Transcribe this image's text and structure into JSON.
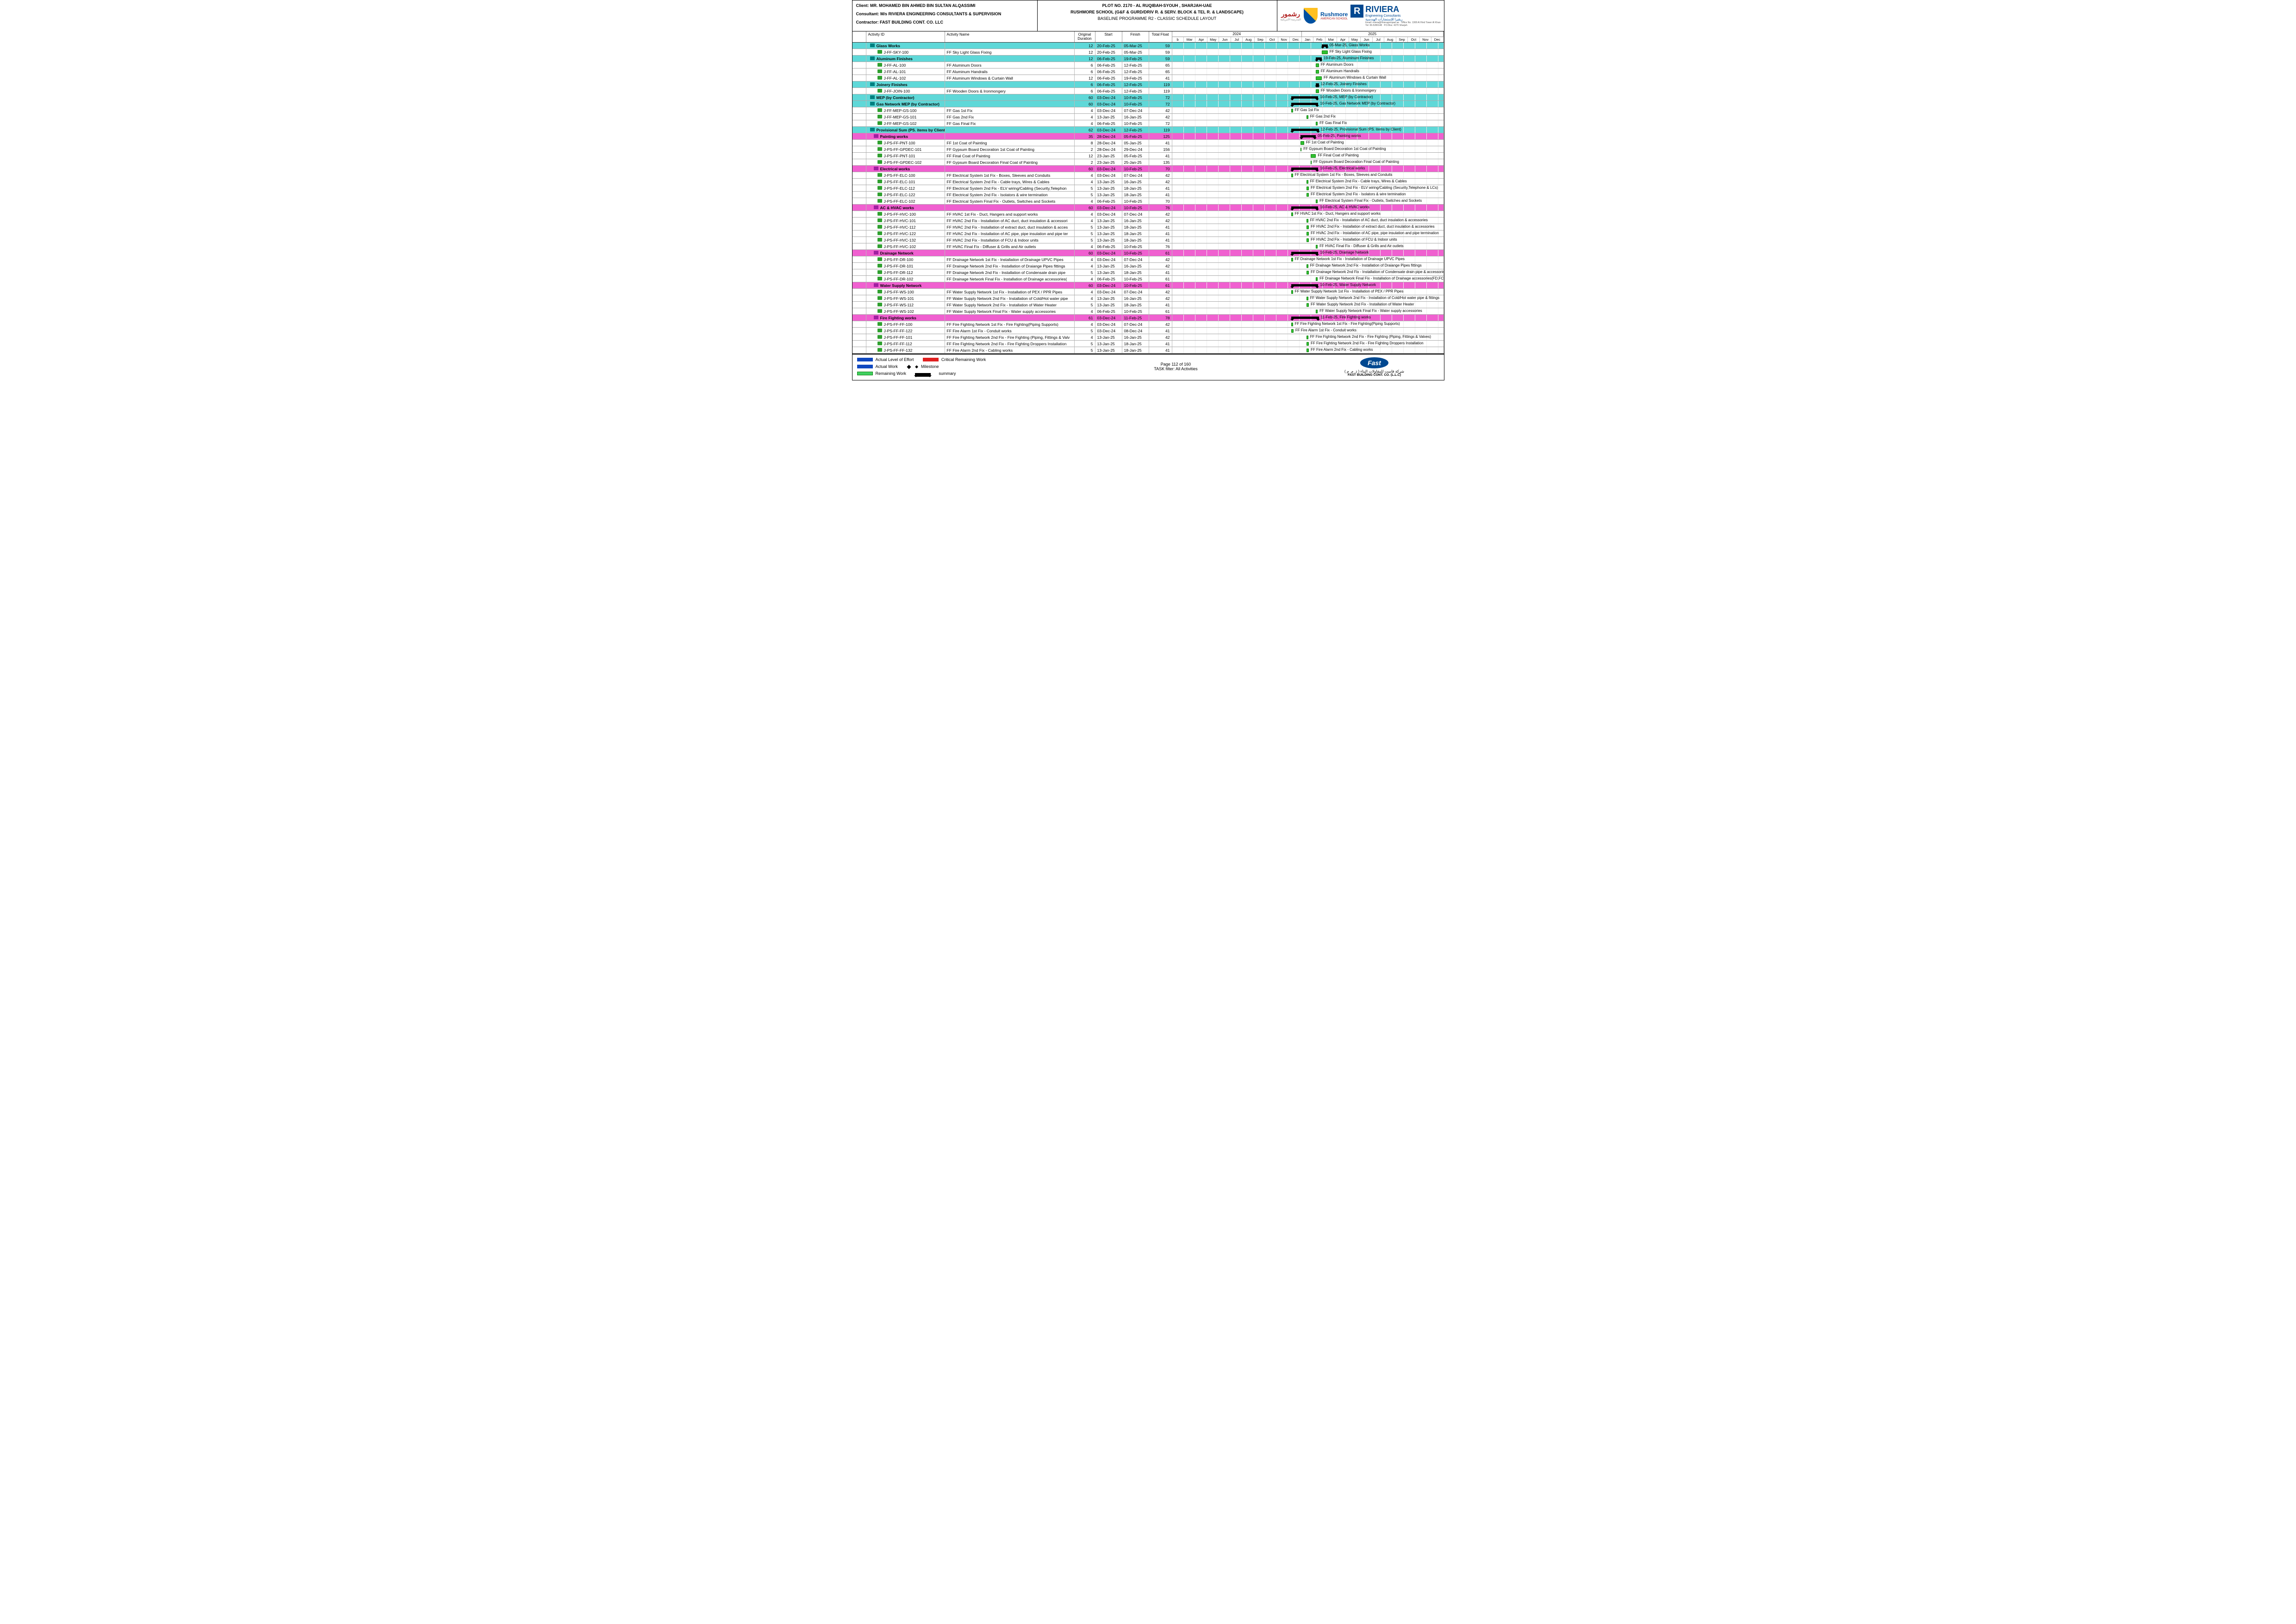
{
  "header": {
    "client_label": "Client:",
    "client": "MR. MOHAMED BIN AHMED BIN SULTAN ALQASSIMI",
    "consultant_label": "Consultant:",
    "consultant": "M/s RIVIERA ENGINEERING CONSULTANTS & SUPERVISION",
    "contractor_label": "Contractor:",
    "contractor": "FAST BUILDING CONT. CO. LLC",
    "plot": "PLOT NO. 2170 - AL RUQIBAH-SYOUH , SHARJAH-UAE",
    "project": "RUSHMORE SCHOOL (G&F & GURD/DRIV R. & SERV. BLOCK & TEL R. & LANDSCAPE)",
    "baseline": "BASELINE PROGRAMME R2 - CLASSIC SCHEDULE LAYOUT",
    "rushmore_ar": "رشمور",
    "rushmore_en": "Rushmore",
    "rushmore_sub": "AMERICAN SCHOOL",
    "riviera": "RIVIERA",
    "riviera_sub1": "Engineering Consultants",
    "riviera_sub2": "ريڤيرا للإستشارات الهندسية",
    "riviera_email": "Email: riviera@rivieragroupae.ae",
    "riviera_tel": "Tel: 06-5280148",
    "riviera_addr1": "Office No. 1308 Al Hind Tower Al Khan",
    "riviera_addr2": "P.O.Box: 4270 Sharjah"
  },
  "columns": {
    "id": "Activity ID",
    "name": "Activity Name",
    "od": "Original Duration",
    "start": "Start",
    "finish": "Finish",
    "float": "Total Float"
  },
  "years": [
    "2024",
    "2025"
  ],
  "months": [
    "b",
    "Mar",
    "Apr",
    "May",
    "Jun",
    "Jul",
    "Aug",
    "Sep",
    "Oct",
    "Nov",
    "Dec",
    "Jan",
    "Feb",
    "Mar",
    "Apr",
    "May",
    "Jun",
    "Jul",
    "Aug",
    "Sep",
    "Oct",
    "Nov",
    "Dec"
  ],
  "stripes": [
    "#2040c0",
    "#c84020",
    "#e8c030",
    "#20a060",
    "#8040c0"
  ],
  "rows": [
    {
      "t": "sc",
      "id": "Glass Works",
      "name": "",
      "od": "12",
      "s": "20-Feb-25",
      "f": "05-Mar-25",
      "fl": "59",
      "bs": 12.7,
      "bw": 0.5,
      "lbl": "05-Mar-25, Glass Works"
    },
    {
      "t": "a",
      "id": "J-FF-SKY-100",
      "name": "FF Sky Light Glass Fixing",
      "od": "12",
      "s": "20-Feb-25",
      "f": "05-Mar-25",
      "fl": "59",
      "bs": 12.7,
      "bw": 0.5,
      "lbl": "FF Sky Light Glass Fixing"
    },
    {
      "t": "sc",
      "id": "Aluminum Finishes",
      "name": "",
      "od": "12",
      "s": "06-Feb-25",
      "f": "19-Feb-25",
      "fl": "59",
      "bs": 12.2,
      "bw": 0.5,
      "lbl": "19-Feb-25, Aluminum Finishes"
    },
    {
      "t": "a",
      "id": "J-FF-AL-100",
      "name": "FF Aluminum Doors",
      "od": "6",
      "s": "06-Feb-25",
      "f": "12-Feb-25",
      "fl": "65",
      "bs": 12.2,
      "bw": 0.25,
      "lbl": "FF Aluminum Doors"
    },
    {
      "t": "a",
      "id": "J-FF-AL-101",
      "name": "FF Aluminum Handrails",
      "od": "6",
      "s": "06-Feb-25",
      "f": "12-Feb-25",
      "fl": "65",
      "bs": 12.2,
      "bw": 0.25,
      "lbl": "FF Aluminum Handrails"
    },
    {
      "t": "a",
      "id": "J-FF-AL-102",
      "name": "FF Aluminum Windows & Curtain Wall",
      "od": "12",
      "s": "06-Feb-25",
      "f": "19-Feb-25",
      "fl": "41",
      "bs": 12.2,
      "bw": 0.5,
      "lbl": "FF Aluminum Windows & Curtain Wall"
    },
    {
      "t": "sc",
      "id": "Joinery Finishes",
      "name": "",
      "od": "6",
      "s": "06-Feb-25",
      "f": "12-Feb-25",
      "fl": "119",
      "bs": 12.2,
      "bw": 0.25,
      "lbl": "12-Feb-25, Joinery Finishes"
    },
    {
      "t": "a",
      "id": "J-FF-JOIN-100",
      "name": "FF Wooden Doors & Ironmongery",
      "od": "6",
      "s": "06-Feb-25",
      "f": "12-Feb-25",
      "fl": "119",
      "bs": 12.2,
      "bw": 0.25,
      "lbl": "FF Wooden Doors & Ironmongery"
    },
    {
      "t": "sc",
      "id": "MEP (by Contractor)",
      "name": "",
      "od": "60",
      "s": "03-Dec-24",
      "f": "10-Feb-25",
      "fl": "72",
      "bs": 10.1,
      "bw": 2.3,
      "lbl": "10-Feb-25, MEP (by Contractor)"
    },
    {
      "t": "sc",
      "id": "Gas Network MEP (by Contractor)",
      "name": "",
      "od": "60",
      "s": "03-Dec-24",
      "f": "10-Feb-25",
      "fl": "72",
      "bs": 10.1,
      "bw": 2.3,
      "lbl": "10-Feb-25, Gas Network MEP (by Contractor)"
    },
    {
      "t": "a",
      "id": "J-FF-MEP-GS-100",
      "name": "FF Gas 1st Fix",
      "od": "4",
      "s": "03-Dec-24",
      "f": "07-Dec-24",
      "fl": "42",
      "bs": 10.1,
      "bw": 0.15,
      "lbl": "FF Gas 1st Fix"
    },
    {
      "t": "a",
      "id": "J-FF-MEP-GS-101",
      "name": "FF Gas 2nd Fix",
      "od": "4",
      "s": "13-Jan-25",
      "f": "16-Jan-25",
      "fl": "42",
      "bs": 11.4,
      "bw": 0.15,
      "lbl": "FF Gas 2nd Fix"
    },
    {
      "t": "a",
      "id": "J-FF-MEP-GS-102",
      "name": "FF Gas Final Fix",
      "od": "4",
      "s": "06-Feb-25",
      "f": "10-Feb-25",
      "fl": "72",
      "bs": 12.2,
      "bw": 0.15,
      "lbl": "FF Gas Final Fix"
    },
    {
      "t": "sc",
      "id": "Provisional Sum (PS. items by Client)",
      "name": "",
      "od": "62",
      "s": "03-Dec-24",
      "f": "12-Feb-25",
      "fl": "119",
      "bs": 10.1,
      "bw": 2.35,
      "lbl": "12-Feb-25, Provisional Sum (PS. items by Client)"
    },
    {
      "t": "sm",
      "id": "Painting works",
      "name": "",
      "od": "35",
      "s": "28-Dec-24",
      "f": "05-Feb-25",
      "fl": "125",
      "bs": 10.9,
      "bw": 1.3,
      "lbl": "05-Feb-25, Painting works"
    },
    {
      "t": "a",
      "id": "J-PS-FF-PNT-100",
      "name": "FF 1st Coat of Painting",
      "od": "8",
      "s": "28-Dec-24",
      "f": "05-Jan-25",
      "fl": "41",
      "bs": 10.9,
      "bw": 0.3,
      "lbl": "FF 1st Coat of Painting"
    },
    {
      "t": "a",
      "id": "J-PS-FF-GPDEC-101",
      "name": "FF Gypsum Board Decoration 1st Coat of Painting",
      "od": "2",
      "s": "28-Dec-24",
      "f": "29-Dec-24",
      "fl": "156",
      "bs": 10.9,
      "bw": 0.08,
      "lbl": "FF Gypsum Board Decoration 1st Coat of Painting"
    },
    {
      "t": "a",
      "id": "J-PS-FF-PNT-101",
      "name": "FF Final Coat of Painting",
      "od": "12",
      "s": "23-Jan-25",
      "f": "05-Feb-25",
      "fl": "41",
      "bs": 11.75,
      "bw": 0.45,
      "lbl": "FF Final Coat of Painting"
    },
    {
      "t": "a",
      "id": "J-PS-FF-GPDEC-102",
      "name": "FF Gypsum Board Decoration Final Coat of Painting",
      "od": "2",
      "s": "23-Jan-25",
      "f": "25-Jan-25",
      "fl": "135",
      "bs": 11.75,
      "bw": 0.08,
      "lbl": "FF Gypsum Board Decoration Final Coat of Painting"
    },
    {
      "t": "sm",
      "id": "Electrical works",
      "name": "",
      "od": "60",
      "s": "03-Dec-24",
      "f": "10-Feb-25",
      "fl": "70",
      "bs": 10.1,
      "bw": 2.3,
      "lbl": "10-Feb-25, Electrical works"
    },
    {
      "t": "a",
      "id": "J-PS-FF-ELC-100",
      "name": "FF Electrical System 1st Fix - Boxes, Sleeves and Conduits",
      "od": "4",
      "s": "03-Dec-24",
      "f": "07-Dec-24",
      "fl": "42",
      "bs": 10.1,
      "bw": 0.15,
      "lbl": "FF Electrical System 1st Fix - Boxes, Sleeves and Conduits"
    },
    {
      "t": "a",
      "id": "J-PS-FF-ELC-101",
      "name": "FF Electrical System 2nd Fix - Cable trays, Wires & Cables",
      "od": "4",
      "s": "13-Jan-25",
      "f": "16-Jan-25",
      "fl": "42",
      "bs": 11.4,
      "bw": 0.15,
      "lbl": "FF Electrical System 2nd Fix - Cable trays, Wires & Cables"
    },
    {
      "t": "a",
      "id": "J-PS-FF-ELC-112",
      "name": "FF Electrical System 2nd Fix - ELV wiring/Cabling (Security,Telephon",
      "od": "5",
      "s": "13-Jan-25",
      "f": "18-Jan-25",
      "fl": "41",
      "bs": 11.4,
      "bw": 0.2,
      "lbl": "FF Electrical System 2nd Fix - ELV wiring/Cabling (Security,Telephone & LCs)"
    },
    {
      "t": "a",
      "id": "J-PS-FF-ELC-122",
      "name": "FF Electrical System 2nd Fix - Isolators & wire termination",
      "od": "5",
      "s": "13-Jan-25",
      "f": "18-Jan-25",
      "fl": "41",
      "bs": 11.4,
      "bw": 0.2,
      "lbl": "FF Electrical System 2nd Fix - Isolators & wire termination"
    },
    {
      "t": "a",
      "id": "J-PS-FF-ELC-102",
      "name": "FF Electrical System Final Fix - Outlets, Switches and Sockets",
      "od": "4",
      "s": "06-Feb-25",
      "f": "10-Feb-25",
      "fl": "70",
      "bs": 12.2,
      "bw": 0.15,
      "lbl": "FF Electrical System Final Fix - Outlets, Switches and Sockets"
    },
    {
      "t": "sm",
      "id": "AC & HVAC works",
      "name": "",
      "od": "60",
      "s": "03-Dec-24",
      "f": "10-Feb-25",
      "fl": "76",
      "bs": 10.1,
      "bw": 2.3,
      "lbl": "10-Feb-25, AC & HVAC works"
    },
    {
      "t": "a",
      "id": "J-PS-FF-HVC-100",
      "name": "FF HVAC 1st Fix - Duct, Hangers and support works",
      "od": "4",
      "s": "03-Dec-24",
      "f": "07-Dec-24",
      "fl": "42",
      "bs": 10.1,
      "bw": 0.15,
      "lbl": "FF HVAC 1st Fix - Duct, Hangers and support works"
    },
    {
      "t": "a",
      "id": "J-PS-FF-HVC-101",
      "name": "FF HVAC 2nd Fix - Installation of AC duct, duct insulation & accessori",
      "od": "4",
      "s": "13-Jan-25",
      "f": "16-Jan-25",
      "fl": "42",
      "bs": 11.4,
      "bw": 0.15,
      "lbl": "FF HVAC 2nd Fix - Installation of AC duct, duct insulation & accessories"
    },
    {
      "t": "a",
      "id": "J-PS-FF-HVC-112",
      "name": "FF HVAC 2nd Fix - Installation of extract duct, duct insulation & acces",
      "od": "5",
      "s": "13-Jan-25",
      "f": "18-Jan-25",
      "fl": "41",
      "bs": 11.4,
      "bw": 0.2,
      "lbl": "FF HVAC 2nd Fix - Installation of extract duct, duct insulation & accessories"
    },
    {
      "t": "a",
      "id": "J-PS-FF-HVC-122",
      "name": "FF HVAC 2nd Fix - Installation of AC pipe, pipe insulation and pipe ter",
      "od": "5",
      "s": "13-Jan-25",
      "f": "18-Jan-25",
      "fl": "41",
      "bs": 11.4,
      "bw": 0.2,
      "lbl": "FF HVAC 2nd Fix - Installation of AC pipe, pipe insulation and pipe termination"
    },
    {
      "t": "a",
      "id": "J-PS-FF-HVC-132",
      "name": "FF HVAC 2nd Fix - Installation of FCU & Indoor units",
      "od": "5",
      "s": "13-Jan-25",
      "f": "18-Jan-25",
      "fl": "41",
      "bs": 11.4,
      "bw": 0.2,
      "lbl": "FF HVAC 2nd Fix - Installation of FCU & Indoor units"
    },
    {
      "t": "a",
      "id": "J-PS-FF-HVC-102",
      "name": "FF HVAC Final Fix - Diffuser & Grills and Air outlets",
      "od": "4",
      "s": "06-Feb-25",
      "f": "10-Feb-25",
      "fl": "76",
      "bs": 12.2,
      "bw": 0.15,
      "lbl": "FF HVAC Final Fix - Diffuser & Grills and Air outlets"
    },
    {
      "t": "sm",
      "id": "Drainage Network",
      "name": "",
      "od": "60",
      "s": "03-Dec-24",
      "f": "10-Feb-25",
      "fl": "61",
      "bs": 10.1,
      "bw": 2.3,
      "lbl": "10-Feb-25, Drainage Network"
    },
    {
      "t": "a",
      "id": "J-PS-FF-DR-100",
      "name": "FF Drainage Network 1st Fix - Installation of Drainage UPVC Pipes",
      "od": "4",
      "s": "03-Dec-24",
      "f": "07-Dec-24",
      "fl": "42",
      "bs": 10.1,
      "bw": 0.15,
      "lbl": "FF Drainage Network 1st Fix - Installation of Drainage UPVC Pipes"
    },
    {
      "t": "a",
      "id": "J-PS-FF-DR-101",
      "name": "FF Drainage Network 2nd Fix - Installation of Draiange Pipes fittings",
      "od": "4",
      "s": "13-Jan-25",
      "f": "16-Jan-25",
      "fl": "42",
      "bs": 11.4,
      "bw": 0.15,
      "lbl": "FF Drainage Network 2nd Fix - Installation of Draiange Pipes fittings"
    },
    {
      "t": "a",
      "id": "J-PS-FF-DR-112",
      "name": "FF Drainage Network 2nd Fix - Installation of Condensate drain pipe",
      "od": "5",
      "s": "13-Jan-25",
      "f": "18-Jan-25",
      "fl": "41",
      "bs": 11.4,
      "bw": 0.2,
      "lbl": "FF Drainage Network 2nd Fix - Installation of Condensate drain pipe & accessories"
    },
    {
      "t": "a",
      "id": "J-PS-FF-DR-102",
      "name": "FF Drainage Network Final Fix - Installation of Drainage accessories(",
      "od": "4",
      "s": "06-Feb-25",
      "f": "10-Feb-25",
      "fl": "61",
      "bs": 12.2,
      "bw": 0.15,
      "lbl": "FF Drainage Network Final Fix - Installation of Drainage accessories(FD,FCO,CO"
    },
    {
      "t": "sm",
      "id": "Water Supply Network",
      "name": "",
      "od": "60",
      "s": "03-Dec-24",
      "f": "10-Feb-25",
      "fl": "61",
      "bs": 10.1,
      "bw": 2.3,
      "lbl": "10-Feb-25, Water Supply Network"
    },
    {
      "t": "a",
      "id": "J-PS-FF-WS-100",
      "name": "FF Water Supply Network 1st Fix - Installation of PEX / PPR Pipes",
      "od": "4",
      "s": "03-Dec-24",
      "f": "07-Dec-24",
      "fl": "42",
      "bs": 10.1,
      "bw": 0.15,
      "lbl": "FF Water Supply Network 1st Fix - Installation of PEX / PPR Pipes"
    },
    {
      "t": "a",
      "id": "J-PS-FF-WS-101",
      "name": "FF Water Supply Network 2nd Fix - Installation of Cold/Hot water pipe",
      "od": "4",
      "s": "13-Jan-25",
      "f": "16-Jan-25",
      "fl": "42",
      "bs": 11.4,
      "bw": 0.15,
      "lbl": "FF Water Supply Network 2nd Fix - Installation of Cold/Hot water pipe & fittings"
    },
    {
      "t": "a",
      "id": "J-PS-FF-WS-112",
      "name": "FF Water Supply Network 2nd Fix - Installation of Water Heater",
      "od": "5",
      "s": "13-Jan-25",
      "f": "18-Jan-25",
      "fl": "41",
      "bs": 11.4,
      "bw": 0.2,
      "lbl": "FF Water Supply Network 2nd Fix - Installation of Water Heater"
    },
    {
      "t": "a",
      "id": "J-PS-FF-WS-102",
      "name": "FF Water Supply Network Final Fix - Water supply accessories",
      "od": "4",
      "s": "06-Feb-25",
      "f": "10-Feb-25",
      "fl": "61",
      "bs": 12.2,
      "bw": 0.15,
      "lbl": "FF Water Supply Network Final Fix - Water supply accessories"
    },
    {
      "t": "sm",
      "id": "Fire Fighting works",
      "name": "",
      "od": "61",
      "s": "03-Dec-24",
      "f": "11-Feb-25",
      "fl": "78",
      "bs": 10.1,
      "bw": 2.35,
      "lbl": "11-Feb-25, Fire Fighting works"
    },
    {
      "t": "a",
      "id": "J-PS-FF-FF-100",
      "name": "FF Fire Fighting Network 1st Fix - Fire Fighting(Piping Supports)",
      "od": "4",
      "s": "03-Dec-24",
      "f": "07-Dec-24",
      "fl": "42",
      "bs": 10.1,
      "bw": 0.15,
      "lbl": "FF Fire Fighting Network 1st Fix - Fire Fighting(Piping Supports)"
    },
    {
      "t": "a",
      "id": "J-PS-FF-FF-122",
      "name": "FF Fire Alarm 1st Fix - Conduit works",
      "od": "5",
      "s": "03-Dec-24",
      "f": "08-Dec-24",
      "fl": "41",
      "bs": 10.1,
      "bw": 0.2,
      "lbl": "FF Fire Alarm 1st Fix - Conduit works"
    },
    {
      "t": "a",
      "id": "J-PS-FF-FF-101",
      "name": "FF Fire Fighting Network 2nd Fix - Fire Fighting (Piping, Fittings & Valv",
      "od": "4",
      "s": "13-Jan-25",
      "f": "16-Jan-25",
      "fl": "42",
      "bs": 11.4,
      "bw": 0.15,
      "lbl": "FF Fire Fighting Network 2nd Fix - Fire Fighting (Piping, Fittings & Valves)"
    },
    {
      "t": "a",
      "id": "J-PS-FF-FF-112",
      "name": "FF Fire Fighting Network 2nd Fix - Fire Fighting Droppers Installation",
      "od": "5",
      "s": "13-Jan-25",
      "f": "18-Jan-25",
      "fl": "41",
      "bs": 11.4,
      "bw": 0.2,
      "lbl": "FF Fire Fighting Network 2nd Fix - Fire Fighting Droppers Installation"
    },
    {
      "t": "a",
      "id": "J-PS-FF-FF-132",
      "name": "FF Fire Alarm 2nd Fix - Cabling works",
      "od": "5",
      "s": "13-Jan-25",
      "f": "18-Jan-25",
      "fl": "41",
      "bs": 11.4,
      "bw": 0.2,
      "lbl": "FF Fire Alarm 2nd Fix - Cabling works"
    }
  ],
  "legend": {
    "actual_loe": "Actual Level of Effort",
    "actual_work": "Actual Work",
    "remaining_work": "Remaining Work",
    "critical_remaining": "Critical Remaining Work",
    "milestone": "Milestone",
    "summary": "summary",
    "colors": {
      "actual_loe": "#1048c0",
      "actual_work": "#1048c0",
      "remaining_work": "#40d060",
      "critical_remaining": "#e02020",
      "summary": "#000000"
    }
  },
  "footer": {
    "page": "Page 112 of 160",
    "filter": "TASK filter: All Activities",
    "fast": "Fast",
    "fast_ar": "شركة فاست للمقاولات البناء ( ذ. م. م )",
    "fast_en": "FAST BUILDING CONT. CO. (L.L.C)"
  }
}
